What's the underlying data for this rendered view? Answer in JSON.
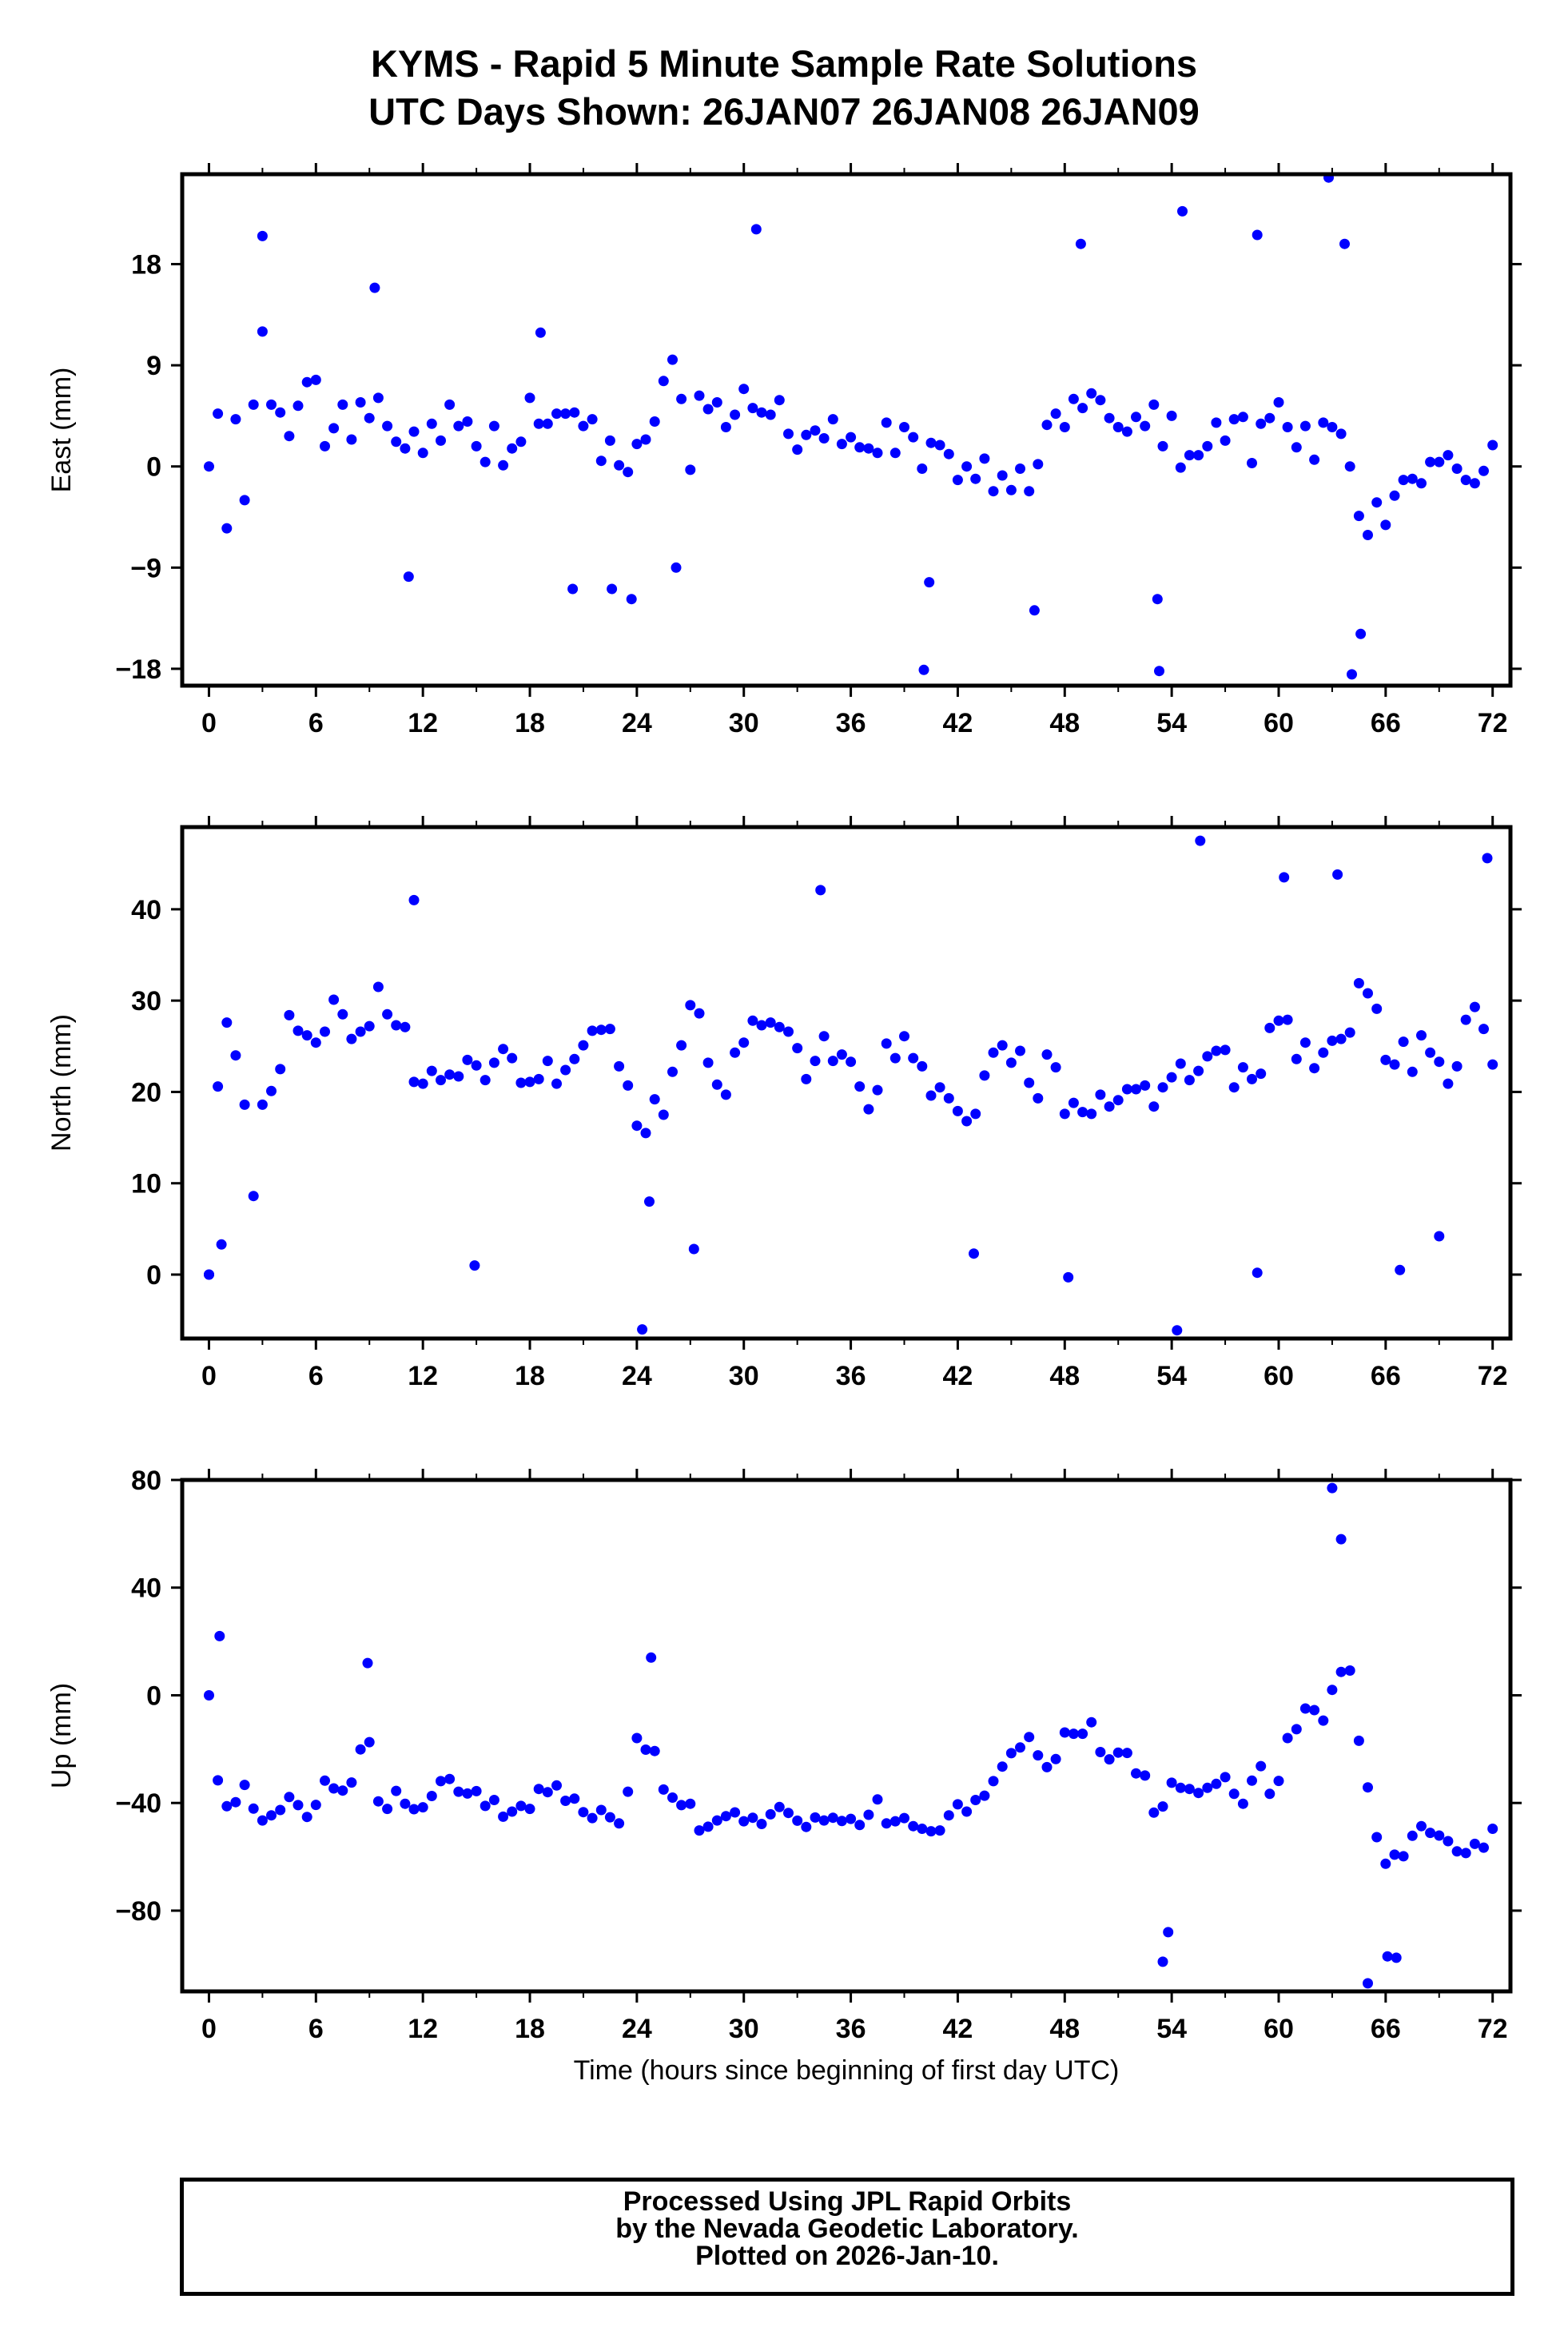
{
  "title_line1": "KYMS - Rapid 5 Minute Sample Rate Solutions",
  "title_line2": "UTC Days Shown:  26JAN07 26JAN08 26JAN09",
  "credits": {
    "line1": "Processed Using JPL Rapid Orbits",
    "line2": "by the Nevada Geodetic Laboratory.",
    "line3": "Plotted on 2026-Jan-10."
  },
  "colors": {
    "points": "#0000ff",
    "frame": "#000000"
  },
  "chart_data": [
    {
      "type": "scatter",
      "ylabel": "East (mm)",
      "xlabel": "",
      "xlim": [
        -1.5,
        73
      ],
      "ylim": [
        -19.5,
        26
      ],
      "xticks": [
        0,
        6,
        12,
        18,
        24,
        30,
        36,
        42,
        48,
        54,
        60,
        66,
        72
      ],
      "yticks": [
        -18,
        -9,
        0,
        9,
        18
      ],
      "ytick_labels": [
        "−18",
        "−9",
        "0",
        "9",
        "18"
      ],
      "x": [
        0.0,
        0.5,
        1.0,
        1.5,
        2.0,
        2.5,
        3.0,
        3.5,
        4.0,
        4.5,
        5.0,
        5.5,
        6.0,
        6.5,
        7.0,
        7.5,
        8.0,
        8.5,
        9.0,
        9.5,
        10.0,
        10.5,
        11.0,
        11.5,
        12.0,
        12.5,
        13.0,
        13.5,
        14.0,
        14.5,
        15.0,
        15.5,
        16.0,
        16.5,
        17.0,
        17.5,
        18.0,
        18.5,
        19.0,
        19.5,
        20.0,
        20.5,
        21.0,
        21.5,
        22.0,
        22.5,
        23.0,
        23.5,
        24.0,
        24.5,
        25.0,
        25.5,
        26.0,
        26.5,
        27.0,
        27.5,
        28.0,
        28.5,
        29.0,
        29.5,
        30.0,
        30.5,
        31.0,
        31.5,
        32.0,
        32.5,
        33.0,
        33.5,
        34.0,
        34.5,
        35.0,
        35.5,
        36.0,
        36.5,
        37.0,
        37.5,
        38.0,
        38.5,
        39.0,
        39.5,
        40.0,
        40.5,
        41.0,
        41.5,
        42.0,
        42.5,
        43.0,
        43.5,
        44.0,
        44.5,
        45.0,
        45.5,
        46.0,
        46.5,
        47.0,
        47.5,
        48.0,
        48.5,
        49.0,
        49.5,
        50.0,
        50.5,
        51.0,
        51.5,
        52.0,
        52.5,
        53.0,
        53.5,
        54.0,
        54.5,
        55.0,
        55.5,
        56.0,
        56.5,
        57.0,
        57.5,
        58.0,
        58.5,
        59.0,
        59.5,
        60.0,
        60.5,
        61.0,
        61.5,
        62.0,
        62.5,
        63.0,
        63.5,
        64.0,
        64.5,
        65.0,
        65.5,
        66.0,
        66.5,
        67.0,
        67.5,
        68.0,
        68.5,
        69.0,
        69.5,
        70.0,
        70.5,
        71.0,
        71.5,
        72.0,
        3.0,
        9.3,
        18.6,
        30.7,
        40.1,
        48.9,
        53.3,
        54.6,
        58.8,
        62.8,
        63.7,
        64.1,
        11.2,
        20.4,
        22.6,
        23.7,
        26.2,
        40.4,
        46.3,
        53.2,
        64.6
      ],
      "y": [
        0.0,
        4.7,
        -5.5,
        4.2,
        -3.0,
        5.5,
        12.0,
        5.5,
        4.8,
        2.7,
        5.4,
        7.5,
        7.7,
        1.8,
        3.4,
        5.5,
        2.4,
        5.7,
        4.3,
        6.1,
        3.6,
        2.2,
        1.6,
        3.1,
        1.2,
        3.8,
        2.3,
        5.5,
        3.6,
        4.0,
        1.8,
        0.4,
        3.6,
        0.1,
        1.6,
        2.2,
        6.1,
        3.8,
        3.8,
        4.7,
        4.7,
        4.8,
        3.6,
        4.2,
        0.5,
        2.3,
        0.1,
        -0.5,
        2.0,
        2.4,
        4.0,
        7.6,
        9.5,
        6.0,
        -0.3,
        6.3,
        5.1,
        5.7,
        3.5,
        4.6,
        6.9,
        5.2,
        4.8,
        4.6,
        5.9,
        2.9,
        1.5,
        2.8,
        3.2,
        2.5,
        4.2,
        2.0,
        2.6,
        1.7,
        1.6,
        1.2,
        3.9,
        1.2,
        3.5,
        2.6,
        -0.2,
        2.1,
        1.9,
        1.1,
        -1.2,
        0.0,
        -1.1,
        0.7,
        -2.2,
        -0.8,
        -2.1,
        -0.2,
        -2.2,
        0.2,
        3.7,
        4.7,
        3.5,
        6.0,
        5.2,
        6.5,
        5.9,
        4.3,
        3.5,
        3.1,
        4.4,
        3.6,
        5.5,
        1.8,
        4.5,
        -0.1,
        1.0,
        1.0,
        1.8,
        3.9,
        2.3,
        4.2,
        4.4,
        0.3,
        3.8,
        4.3,
        5.7,
        3.5,
        1.7,
        3.6,
        0.6,
        3.9,
        3.5,
        2.9,
        0.0,
        -4.4,
        -6.1,
        -3.2,
        -5.2,
        -2.6,
        -1.2,
        -1.1,
        -1.5,
        0.4,
        0.4,
        1.0,
        -0.2,
        -1.2,
        -1.5,
        -0.4,
        1.9,
        20.5,
        15.9,
        11.9,
        21.1,
        -18.1,
        19.8,
        -18.2,
        22.7,
        20.6,
        25.7,
        19.8,
        -18.5,
        -9.8,
        -10.9,
        -10.9,
        -11.8,
        -9.0,
        -10.3,
        -12.8,
        -11.8,
        -14.9
      ]
    },
    {
      "type": "scatter",
      "ylabel": "North (mm)",
      "xlabel": "",
      "xlim": [
        -1.5,
        73
      ],
      "ylim": [
        -7,
        49
      ],
      "xticks": [
        0,
        6,
        12,
        18,
        24,
        30,
        36,
        42,
        48,
        54,
        60,
        66,
        72
      ],
      "yticks": [
        0,
        10,
        20,
        30,
        40
      ],
      "ytick_labels": [
        "0",
        "10",
        "20",
        "30",
        "40"
      ],
      "x": [
        0.0,
        0.5,
        1.0,
        1.5,
        2.0,
        2.5,
        3.0,
        3.5,
        4.0,
        4.5,
        5.0,
        5.5,
        6.0,
        6.5,
        7.0,
        7.5,
        8.0,
        8.5,
        9.0,
        9.5,
        10.0,
        10.5,
        11.0,
        11.5,
        12.0,
        12.5,
        13.0,
        13.5,
        14.0,
        14.5,
        15.0,
        15.5,
        16.0,
        16.5,
        17.0,
        17.5,
        18.0,
        18.5,
        19.0,
        19.5,
        20.0,
        20.5,
        21.0,
        21.5,
        22.0,
        22.5,
        23.0,
        23.5,
        24.0,
        24.5,
        25.0,
        25.5,
        26.0,
        26.5,
        27.0,
        27.5,
        28.0,
        28.5,
        29.0,
        29.5,
        30.0,
        30.5,
        31.0,
        31.5,
        32.0,
        32.5,
        33.0,
        33.5,
        34.0,
        34.5,
        35.0,
        35.5,
        36.0,
        36.5,
        37.0,
        37.5,
        38.0,
        38.5,
        39.0,
        39.5,
        40.0,
        40.5,
        41.0,
        41.5,
        42.0,
        42.5,
        43.0,
        43.5,
        44.0,
        44.5,
        45.0,
        45.5,
        46.0,
        46.5,
        47.0,
        47.5,
        48.0,
        48.5,
        49.0,
        49.5,
        50.0,
        50.5,
        51.0,
        51.5,
        52.0,
        52.5,
        53.0,
        53.5,
        54.0,
        54.5,
        55.0,
        55.5,
        56.0,
        56.5,
        57.0,
        57.5,
        58.0,
        58.5,
        59.0,
        59.5,
        60.0,
        60.5,
        61.0,
        61.5,
        62.0,
        62.5,
        63.0,
        63.5,
        64.0,
        64.5,
        65.0,
        65.5,
        66.0,
        66.5,
        67.0,
        67.5,
        68.0,
        68.5,
        69.0,
        69.5,
        70.0,
        70.5,
        71.0,
        71.5,
        72.0,
        0.0,
        0.7,
        11.5,
        14.9,
        24.3,
        24.7,
        27.2,
        34.3,
        42.9,
        48.2,
        54.3,
        55.6,
        58.8,
        60.3,
        63.3,
        66.8,
        69.0,
        71.7
      ],
      "y": [
        0.0,
        20.6,
        27.6,
        24.0,
        18.6,
        8.6,
        18.6,
        20.1,
        22.5,
        28.4,
        26.7,
        26.2,
        25.4,
        26.6,
        30.1,
        28.5,
        25.8,
        26.6,
        27.2,
        31.5,
        28.5,
        27.3,
        27.1,
        21.1,
        20.9,
        22.3,
        21.3,
        21.9,
        21.7,
        23.5,
        22.9,
        21.3,
        23.2,
        24.7,
        23.7,
        21.0,
        21.1,
        21.4,
        23.4,
        20.9,
        22.4,
        23.6,
        25.1,
        26.7,
        26.8,
        26.9,
        22.8,
        20.7,
        16.3,
        15.5,
        19.2,
        17.5,
        22.2,
        25.1,
        29.5,
        28.6,
        23.2,
        20.8,
        19.7,
        24.3,
        25.4,
        27.8,
        27.3,
        27.6,
        27.1,
        26.6,
        24.8,
        21.4,
        23.4,
        26.1,
        23.4,
        24.1,
        23.3,
        20.6,
        18.1,
        20.2,
        25.3,
        23.7,
        26.1,
        23.7,
        22.8,
        19.6,
        20.5,
        19.3,
        17.9,
        16.8,
        17.6,
        21.8,
        24.3,
        25.1,
        23.2,
        24.5,
        21.0,
        19.3,
        24.1,
        22.7,
        17.6,
        18.8,
        17.8,
        17.6,
        19.7,
        18.4,
        19.1,
        20.3,
        20.3,
        20.7,
        18.4,
        20.5,
        21.6,
        23.1,
        21.3,
        22.3,
        23.9,
        24.5,
        24.6,
        20.5,
        22.7,
        21.4,
        22.0,
        27.0,
        27.8,
        27.9,
        23.6,
        25.4,
        22.6,
        24.3,
        25.6,
        25.8,
        26.5,
        31.9,
        30.8,
        29.1,
        23.5,
        23.0,
        25.5,
        22.2,
        26.2,
        24.3,
        23.3,
        20.9,
        22.8,
        27.9,
        29.3,
        26.9,
        23.0,
        0.0,
        3.3,
        41.0,
        1.0,
        -6.0,
        8.0,
        2.8,
        42.1,
        2.3,
        -0.3,
        -6.1,
        47.5,
        0.2,
        43.5,
        43.8,
        0.5,
        4.2,
        45.6
      ]
    },
    {
      "type": "scatter",
      "ylabel": "Up (mm)",
      "xlabel": "Time (hours since beginning of first day UTC)",
      "xlim": [
        -1.5,
        73
      ],
      "ylim": [
        -110,
        80
      ],
      "xticks": [
        0,
        6,
        12,
        18,
        24,
        30,
        36,
        42,
        48,
        54,
        60,
        66,
        72
      ],
      "yticks": [
        -80,
        -40,
        0,
        40,
        80
      ],
      "ytick_labels": [
        "−80",
        "−40",
        "0",
        "40",
        "80"
      ],
      "x": [
        0.0,
        0.5,
        1.0,
        1.5,
        2.0,
        2.5,
        3.0,
        3.5,
        4.0,
        4.5,
        5.0,
        5.5,
        6.0,
        6.5,
        7.0,
        7.5,
        8.0,
        8.5,
        9.0,
        9.5,
        10.0,
        10.5,
        11.0,
        11.5,
        12.0,
        12.5,
        13.0,
        13.5,
        14.0,
        14.5,
        15.0,
        15.5,
        16.0,
        16.5,
        17.0,
        17.5,
        18.0,
        18.5,
        19.0,
        19.5,
        20.0,
        20.5,
        21.0,
        21.5,
        22.0,
        22.5,
        23.0,
        23.5,
        24.0,
        24.5,
        25.0,
        25.5,
        26.0,
        26.5,
        27.0,
        27.5,
        28.0,
        28.5,
        29.0,
        29.5,
        30.0,
        30.5,
        31.0,
        31.5,
        32.0,
        32.5,
        33.0,
        33.5,
        34.0,
        34.5,
        35.0,
        35.5,
        36.0,
        36.5,
        37.0,
        37.5,
        38.0,
        38.5,
        39.0,
        39.5,
        40.0,
        40.5,
        41.0,
        41.5,
        42.0,
        42.5,
        43.0,
        43.5,
        44.0,
        44.5,
        45.0,
        45.5,
        46.0,
        46.5,
        47.0,
        47.5,
        48.0,
        48.5,
        49.0,
        49.5,
        50.0,
        50.5,
        51.0,
        51.5,
        52.0,
        52.5,
        53.0,
        53.5,
        54.0,
        54.5,
        55.0,
        55.5,
        56.0,
        56.5,
        57.0,
        57.5,
        58.0,
        58.5,
        59.0,
        59.5,
        60.0,
        60.5,
        61.0,
        61.5,
        62.0,
        62.5,
        63.0,
        63.5,
        64.0,
        64.5,
        65.0,
        65.5,
        66.0,
        66.5,
        67.0,
        67.5,
        68.0,
        68.5,
        69.0,
        69.5,
        70.0,
        70.5,
        71.0,
        71.5,
        72.0,
        0.6,
        8.9,
        24.8,
        53.5,
        53.8,
        63.0,
        63.5,
        65.0,
        66.1,
        66.6
      ],
      "y": [
        0.0,
        -31.6,
        -41.2,
        -39.7,
        -33.3,
        -42.1,
        -46.5,
        -44.6,
        -42.6,
        -37.8,
        -40.8,
        -45.2,
        -40.7,
        -31.7,
        -34.6,
        -35.4,
        -32.4,
        -20.1,
        -17.4,
        -39.4,
        -42.2,
        -35.5,
        -40.3,
        -42.3,
        -41.6,
        -37.4,
        -31.9,
        -31.1,
        -35.8,
        -36.5,
        -35.6,
        -41.1,
        -38.9,
        -45.1,
        -43.2,
        -41.1,
        -42.2,
        -34.8,
        -36.0,
        -33.5,
        -39.2,
        -38.4,
        -43.4,
        -45.6,
        -42.6,
        -45.3,
        -47.6,
        -35.8,
        -15.9,
        -20.2,
        -20.7,
        -35.0,
        -38.0,
        -40.8,
        -40.3,
        -50.2,
        -48.8,
        -46.5,
        -44.9,
        -43.5,
        -46.8,
        -45.5,
        -47.8,
        -44.2,
        -41.5,
        -43.7,
        -46.6,
        -48.9,
        -45.4,
        -46.5,
        -45.5,
        -46.7,
        -45.9,
        -48.2,
        -44.4,
        -38.7,
        -47.6,
        -46.8,
        -45.6,
        -48.6,
        -49.6,
        -50.5,
        -50.2,
        -44.6,
        -40.5,
        -43.2,
        -38.9,
        -37.3,
        -31.9,
        -26.5,
        -21.5,
        -19.4,
        -15.5,
        -22.3,
        -26.7,
        -23.7,
        -13.8,
        -14.3,
        -14.3,
        -10.0,
        -21.1,
        -23.8,
        -21.3,
        -21.4,
        -29.0,
        -29.8,
        -43.6,
        -41.3,
        -32.5,
        -34.4,
        -34.8,
        -36.3,
        -34.4,
        -32.9,
        -30.4,
        -36.6,
        -40.3,
        -31.7,
        -26.3,
        -36.6,
        -31.8,
        -15.9,
        -12.6,
        -4.9,
        -5.5,
        -9.4,
        2.0,
        8.7,
        9.2,
        -16.9,
        -34.2,
        -52.7,
        -62.6,
        -59.2,
        -59.8,
        -52.2,
        -48.6,
        -51.1,
        -52.1,
        -54.2,
        -58.0,
        -58.6,
        -55.2,
        -56.6,
        -49.6,
        22.0,
        12.0,
        14.0,
        -99.0,
        -88.0,
        77.0,
        58.0,
        -107.0,
        -97.0,
        -97.5
      ]
    }
  ]
}
